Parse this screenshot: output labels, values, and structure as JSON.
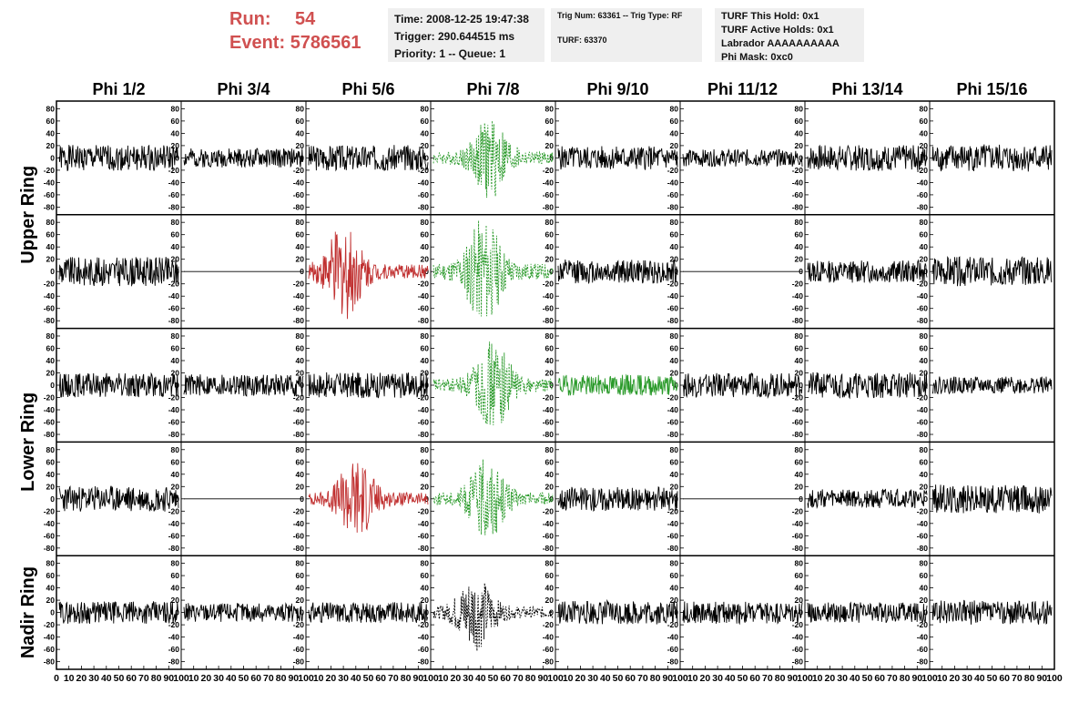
{
  "header": {
    "run_label": "Run:",
    "run_value": "54",
    "event_label": "Event:",
    "event_value": "5786561",
    "time": "Time: 2008-12-25 19:47:38",
    "trigger": "Trigger: 290.644515 ms",
    "priority": "Priority: 1 -- Queue: 1",
    "trig_num": "Trig Num: 63361 -- Trig Type: RF",
    "turf": "TURF: 63370",
    "turf_hold": "TURF This Hold: 0x1",
    "turf_active": "TURF Active Holds: 0x1",
    "labrador": "Labrador AAAAAAAAAA",
    "phi_mask": "Phi Mask: 0xc0"
  },
  "colors": {
    "accent_red": "#d05050",
    "trace_black": "#000000",
    "trace_red": "#c03030",
    "trace_green": "#2a9a2a",
    "info_bg": "#efefef"
  },
  "chart_data": {
    "type": "line",
    "columns": [
      "Phi 1/2",
      "Phi 3/4",
      "Phi 5/6",
      "Phi 7/8",
      "Phi 9/10",
      "Phi 11/12",
      "Phi 13/14",
      "Phi 15/16"
    ],
    "row_labels": [
      {
        "text": "Upper Ring",
        "rows": [
          0,
          1
        ]
      },
      {
        "text": "Lower Ring",
        "rows": [
          2,
          3
        ]
      },
      {
        "text": "Nadir Ring",
        "rows": [
          4,
          4
        ]
      }
    ],
    "ylim": [
      -85,
      85
    ],
    "yticks": [
      -80,
      -60,
      -40,
      -20,
      0,
      20,
      40,
      60,
      80
    ],
    "xlim": [
      0,
      100
    ],
    "xticks": [
      0,
      10,
      20,
      30,
      40,
      50,
      60,
      70,
      80,
      90,
      100
    ],
    "panels": [
      [
        {
          "style": "noise",
          "color": "black",
          "amp": 15,
          "seed": 1
        },
        {
          "style": "noise",
          "color": "black",
          "amp": 11,
          "seed": 2
        },
        {
          "style": "noise",
          "color": "black",
          "amp": 15,
          "seed": 3
        },
        {
          "style": "burst",
          "color": "green",
          "dashed": true,
          "amp": 13,
          "burst": 48,
          "seed": 4
        },
        {
          "style": "noise",
          "color": "black",
          "amp": 14,
          "seed": 5
        },
        {
          "style": "noise",
          "color": "black",
          "amp": 10,
          "seed": 6
        },
        {
          "style": "noise",
          "color": "black",
          "amp": 15,
          "seed": 7
        },
        {
          "style": "noise",
          "color": "black",
          "amp": 16,
          "seed": 8
        }
      ],
      [
        {
          "style": "noise",
          "color": "black",
          "amp": 17,
          "seed": 9
        },
        {
          "style": "flat",
          "color": "black"
        },
        {
          "style": "burst",
          "color": "red",
          "amp": 15,
          "burst": 30,
          "seed": 10
        },
        {
          "style": "burst",
          "color": "green",
          "dashed": true,
          "amp": 17,
          "burst": 42,
          "seed": 11
        },
        {
          "style": "noise",
          "color": "black",
          "amp": 14,
          "seed": 12
        },
        {
          "style": "flat",
          "color": "black"
        },
        {
          "style": "noise",
          "color": "black",
          "amp": 13,
          "seed": 13
        },
        {
          "style": "noise",
          "color": "black",
          "amp": 17,
          "seed": 14
        }
      ],
      [
        {
          "style": "noise",
          "color": "black",
          "amp": 14,
          "seed": 15
        },
        {
          "style": "noise",
          "color": "black",
          "amp": 13,
          "seed": 16
        },
        {
          "style": "noise",
          "color": "black",
          "amp": 15,
          "seed": 17
        },
        {
          "style": "burst",
          "color": "green",
          "dashed": true,
          "amp": 14,
          "burst": 50,
          "seed": 18
        },
        {
          "style": "noise",
          "color": "green",
          "amp": 12,
          "seed": 19
        },
        {
          "style": "noise",
          "color": "black",
          "amp": 14,
          "seed": 20
        },
        {
          "style": "noise",
          "color": "black",
          "amp": 15,
          "seed": 21
        },
        {
          "style": "noise",
          "color": "black",
          "amp": 10,
          "seed": 22
        }
      ],
      [
        {
          "style": "noise",
          "color": "black",
          "amp": 15,
          "seed": 23
        },
        {
          "style": "flat",
          "color": "black"
        },
        {
          "style": "burst",
          "color": "red",
          "amp": 13,
          "burst": 40,
          "seed": 24
        },
        {
          "style": "burst",
          "color": "green",
          "dashed": true,
          "amp": 13,
          "burst": 45,
          "seed": 25
        },
        {
          "style": "noise",
          "color": "black",
          "amp": 14,
          "seed": 26
        },
        {
          "style": "flat",
          "color": "black"
        },
        {
          "style": "noise",
          "color": "black",
          "amp": 11,
          "seed": 27
        },
        {
          "style": "noise",
          "color": "black",
          "amp": 17,
          "seed": 28
        }
      ],
      [
        {
          "style": "noise",
          "color": "black",
          "amp": 13,
          "seed": 29
        },
        {
          "style": "noise",
          "color": "black",
          "amp": 11,
          "seed": 30
        },
        {
          "style": "noise",
          "color": "black",
          "amp": 12,
          "seed": 31
        },
        {
          "style": "burst",
          "color": "black",
          "dashed": true,
          "amp": 12,
          "burst": 35,
          "seed": 32
        },
        {
          "style": "noise",
          "color": "black",
          "amp": 14,
          "seed": 33
        },
        {
          "style": "noise",
          "color": "black",
          "amp": 13,
          "seed": 34
        },
        {
          "style": "noise",
          "color": "black",
          "amp": 12,
          "seed": 35
        },
        {
          "style": "noise",
          "color": "black",
          "amp": 14,
          "seed": 36
        }
      ]
    ]
  }
}
